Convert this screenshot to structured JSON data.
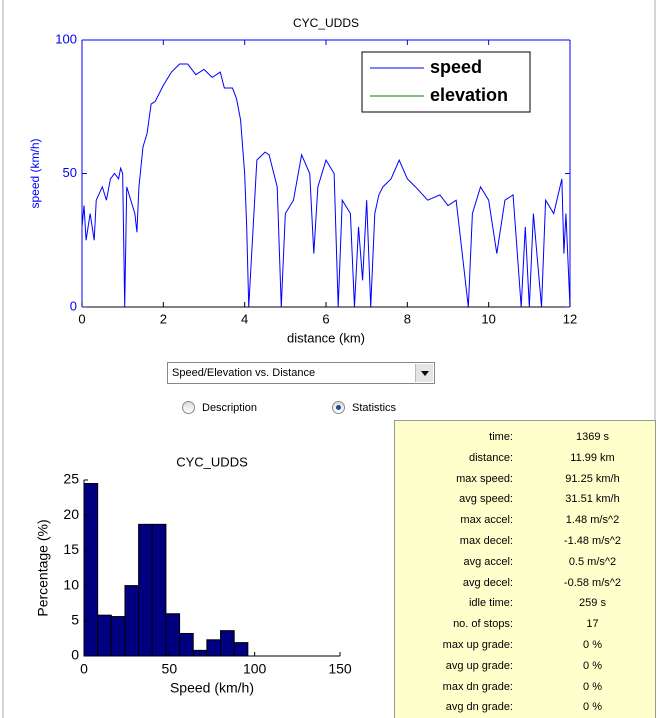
{
  "chart_data": [
    {
      "type": "line",
      "title": "CYC_UDDS",
      "xlabel": "distance (km)",
      "ylabel": "speed (km/h)",
      "axis_color": "#0000ff",
      "x": [
        0,
        0.05,
        0.1,
        0.2,
        0.3,
        0.35,
        0.5,
        0.6,
        0.7,
        0.8,
        0.9,
        0.95,
        1.0,
        1.05,
        1.1,
        1.2,
        1.3,
        1.35,
        1.4,
        1.5,
        1.6,
        1.7,
        1.8,
        1.9,
        2.0,
        2.2,
        2.4,
        2.6,
        2.8,
        3.0,
        3.2,
        3.4,
        3.5,
        3.7,
        3.8,
        3.9,
        4.0,
        4.05,
        4.1,
        4.3,
        4.5,
        4.6,
        4.8,
        4.9,
        5.0,
        5.2,
        5.4,
        5.6,
        5.7,
        5.8,
        6.0,
        6.2,
        6.3,
        6.4,
        6.6,
        6.7,
        6.8,
        6.9,
        7.0,
        7.1,
        7.2,
        7.3,
        7.4,
        7.6,
        7.8,
        8.0,
        8.2,
        8.5,
        8.8,
        9.0,
        9.2,
        9.5,
        9.6,
        9.8,
        10.0,
        10.2,
        10.4,
        10.6,
        10.8,
        10.9,
        11.0,
        11.1,
        11.3,
        11.4,
        11.6,
        11.8,
        11.85,
        11.9,
        12
      ],
      "series": [
        {
          "name": "speed",
          "color": "#0000ff",
          "values": [
            30,
            38,
            25,
            35,
            25,
            40,
            45,
            40,
            48,
            50,
            48,
            52,
            50,
            0,
            45,
            40,
            35,
            28,
            45,
            60,
            65,
            76,
            77,
            80,
            83,
            88,
            91,
            91,
            87,
            89,
            86,
            88,
            82,
            82,
            78,
            70,
            50,
            30,
            0,
            55,
            58,
            57,
            45,
            0,
            35,
            40,
            57,
            50,
            20,
            45,
            55,
            50,
            0,
            40,
            35,
            0,
            30,
            10,
            40,
            0,
            35,
            42,
            45,
            48,
            55,
            48,
            45,
            40,
            42,
            38,
            40,
            0,
            35,
            45,
            40,
            20,
            40,
            42,
            0,
            30,
            0,
            35,
            0,
            40,
            35,
            48,
            20,
            35,
            0
          ]
        },
        {
          "name": "elevation",
          "color": "#008000",
          "values": [
            null,
            null,
            null,
            null,
            null,
            null,
            null,
            null,
            null,
            null,
            null,
            null,
            null,
            null,
            null,
            null,
            null,
            null,
            null,
            null,
            null,
            null,
            null,
            null,
            null,
            null,
            null,
            null,
            null,
            null,
            null,
            null,
            null,
            null,
            null,
            null,
            null,
            null,
            null,
            null,
            null,
            null,
            null,
            null,
            null,
            null,
            null,
            null,
            null,
            null,
            null,
            null,
            null,
            null,
            null,
            null,
            null,
            null,
            null,
            null,
            null,
            null,
            null,
            null,
            null,
            null,
            null,
            null,
            null,
            null,
            null,
            null,
            null,
            null,
            null,
            null,
            null,
            null,
            null,
            null,
            null,
            null,
            null,
            null,
            null,
            null,
            null,
            null,
            null
          ]
        }
      ],
      "xlim": [
        0,
        12
      ],
      "xticks": [
        0,
        2,
        4,
        6,
        8,
        10,
        12
      ],
      "ylim": [
        0,
        100
      ],
      "yticks": [
        0,
        50,
        100
      ],
      "legend": "upper right"
    },
    {
      "type": "histogram",
      "title": "CYC_UDDS",
      "xlabel": "Speed (km/h)",
      "ylabel": "Percentage (%)",
      "color": "#000080",
      "bins": [
        0,
        8,
        16,
        24,
        32,
        40,
        48,
        56,
        64,
        72,
        80,
        88,
        96
      ],
      "values": [
        24.5,
        5.8,
        5.6,
        10,
        18.7,
        18.7,
        6,
        3.2,
        0.8,
        2.3,
        3.6,
        1.9
      ],
      "xlim": [
        0,
        150
      ],
      "xticks": [
        0,
        50,
        100,
        150
      ],
      "ylim": [
        0,
        25
      ],
      "yticks": [
        0,
        5,
        10,
        15,
        20,
        25
      ]
    }
  ],
  "dropdown": {
    "selected": "Speed/Elevation vs. Distance"
  },
  "radios": {
    "options": [
      "Description",
      "Statistics"
    ],
    "selected": 1
  },
  "statistics": {
    "rows": [
      [
        "time:",
        "1369 s"
      ],
      [
        "distance:",
        "11.99 km"
      ],
      [
        "max speed:",
        "91.25 km/h"
      ],
      [
        "avg speed:",
        "31.51 km/h"
      ],
      [
        "max accel:",
        "1.48 m/s^2"
      ],
      [
        "max decel:",
        "-1.48 m/s^2"
      ],
      [
        "avg accel:",
        "0.5 m/s^2"
      ],
      [
        "avg decel:",
        "-0.58 m/s^2"
      ],
      [
        "idle time:",
        "259 s"
      ],
      [
        "no. of stops:",
        "17"
      ],
      [
        "max up grade:",
        "0 %"
      ],
      [
        "avg up grade:",
        "0 %"
      ],
      [
        "max dn grade:",
        "0 %"
      ],
      [
        "avg dn grade:",
        "0 %"
      ]
    ]
  }
}
